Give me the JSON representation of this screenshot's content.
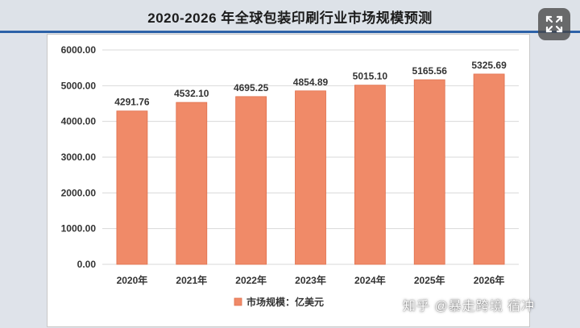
{
  "header": {
    "title": "2020-2026 年全球包装印刷行业市场规模预测"
  },
  "expand_button": {
    "icon": "expand-icon"
  },
  "watermark": {
    "text": "知乎 @暴走跨境 宿冲"
  },
  "colors": {
    "bar": "#f08a68",
    "bar_stroke": "#e0704d",
    "grid": "#d9d9d9",
    "accent": "#2d62a8"
  },
  "chart_data": {
    "type": "bar",
    "categories": [
      "2020年",
      "2021年",
      "2022年",
      "2023年",
      "2024年",
      "2025年",
      "2026年"
    ],
    "series": [
      {
        "name": "市场规模：亿美元",
        "values": [
          4291.76,
          4532.1,
          4695.25,
          4854.89,
          5015.1,
          5165.56,
          5325.69
        ]
      }
    ],
    "data_labels": [
      "4291.76",
      "4532.10",
      "4695.25",
      "4854.89",
      "5015.10",
      "5165.56",
      "5325.69"
    ],
    "y_ticks": [
      "0.00",
      "1000.00",
      "2000.00",
      "3000.00",
      "4000.00",
      "5000.00",
      "6000.00"
    ],
    "ylim": [
      0,
      6000
    ],
    "grid": true,
    "legend_position": "bottom",
    "title": "2020-2026 年全球包装印刷行业市场规模预测"
  }
}
